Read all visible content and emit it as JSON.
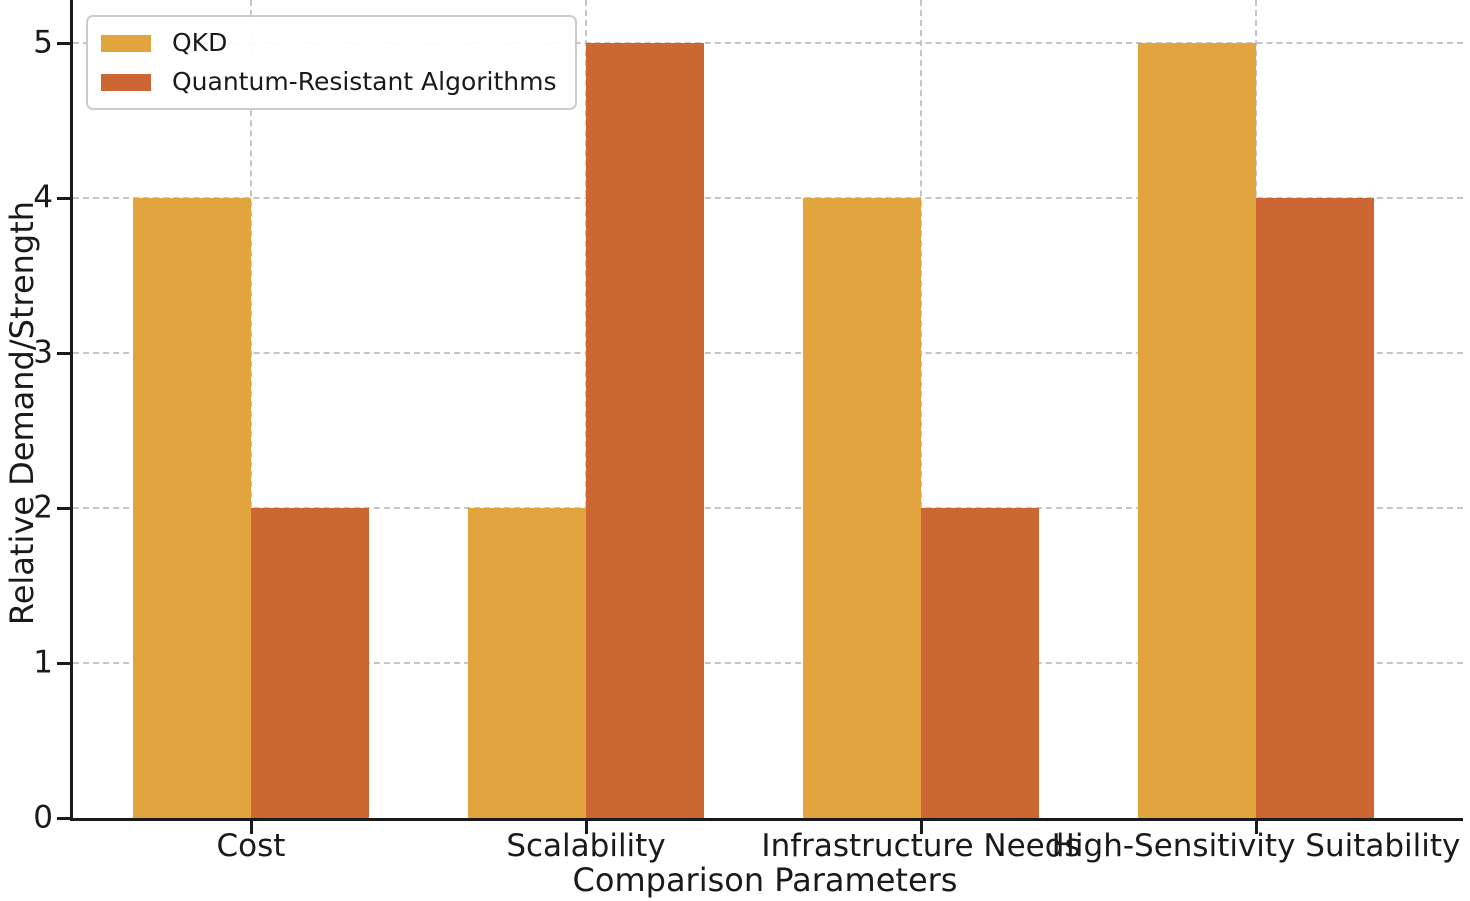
{
  "figure": {
    "background": "#ffffff",
    "text_color": "#1a1a1a",
    "axis_color": "#1a1a1a",
    "grid_color": "#c5c5c5"
  },
  "chart_data": {
    "type": "bar",
    "title": "",
    "xlabel": "Comparison Parameters",
    "ylabel": "Relative Demand/Strength",
    "categories": [
      "Cost",
      "Scalability",
      "Infrastructure Needs",
      "High-Sensitivity Suitability"
    ],
    "series": [
      {
        "name": "QKD",
        "color": "#E2A43C",
        "values": [
          4,
          2,
          4,
          5
        ]
      },
      {
        "name": "Quantum-Resistant Algorithms",
        "color": "#CC6633",
        "values": [
          2,
          5,
          2,
          4
        ]
      }
    ],
    "ylim": [
      0,
      5.28
    ],
    "yticks": [
      0,
      1,
      2,
      3,
      4,
      5
    ],
    "grid": {
      "horizontal": true,
      "vertical": true,
      "style": "dashed"
    },
    "legend": {
      "position": "upper-left",
      "entries": [
        "QKD",
        "Quantum-Resistant Algorithms"
      ]
    }
  }
}
